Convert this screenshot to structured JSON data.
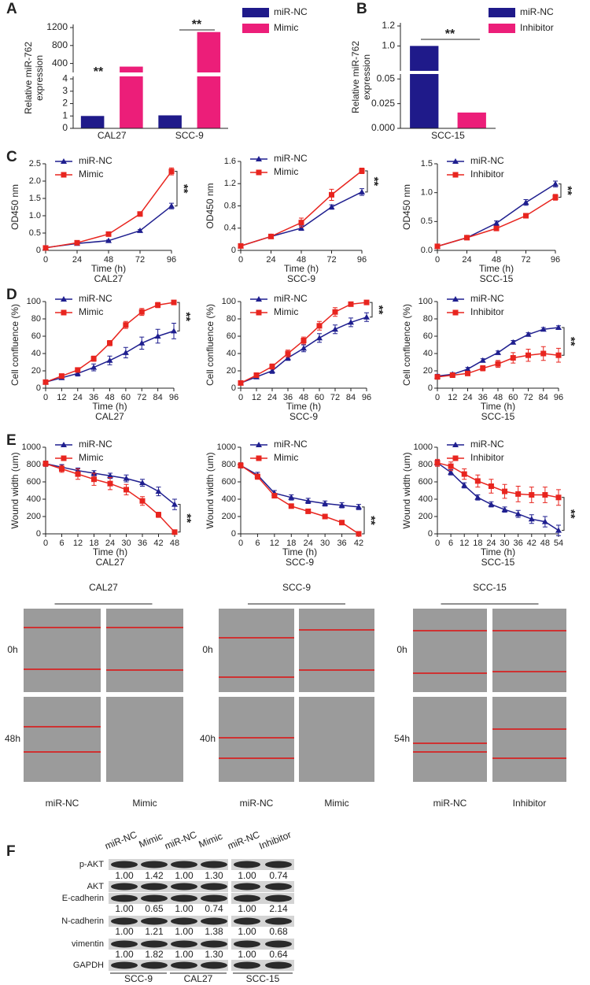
{
  "panel_labels": [
    "A",
    "B",
    "C",
    "D",
    "E",
    "F"
  ],
  "chart_data": [
    {
      "type": "bar",
      "ylabel": [
        "Relative miR-762",
        "expression"
      ],
      "categories": [
        "CAL27",
        "SCC-9"
      ],
      "series": [
        {
          "name": "miR-NC",
          "color": "#1f1a8a",
          "values": [
            1.0,
            1.05
          ]
        },
        {
          "name": "Mimic",
          "color": "#ec1e79",
          "values": [
            330,
            1100
          ]
        }
      ],
      "ylim": [
        0,
        1200
      ],
      "ybreak": [
        4.2,
        200
      ],
      "yticks": [
        0,
        1,
        2,
        3,
        4,
        400,
        800,
        1200
      ],
      "annotations": [
        "**",
        "**"
      ]
    },
    {
      "type": "bar",
      "ylabel": [
        "Relative miR-762",
        "expression"
      ],
      "categories": [
        "SCC-15"
      ],
      "series": [
        {
          "name": "miR-NC",
          "color": "#1f1a8a",
          "values": [
            1.0
          ]
        },
        {
          "name": "Inhibitor",
          "color": "#ec1e79",
          "values": [
            0.016
          ]
        }
      ],
      "ylim": [
        0,
        1.2
      ],
      "ybreak": [
        0.055,
        0.75
      ],
      "yticks": [
        {
          "value": 0,
          "label": "0.000"
        },
        {
          "value": 0.025,
          "label": "0.025"
        },
        0.05,
        {
          "value": 1,
          "label": "1.0"
        },
        {
          "value": 1.2,
          "label": "1.2"
        }
      ],
      "annotations": [
        "**"
      ]
    },
    {
      "type": "line",
      "subtitle": "CAL27",
      "xlabel": "Time (h)",
      "ylabel": "OD450 nm",
      "x": [
        0,
        24,
        48,
        72,
        96
      ],
      "xlim": [
        0,
        96
      ],
      "xticks": [
        0,
        24,
        48,
        72,
        96
      ],
      "ylim": [
        0,
        2.5
      ],
      "yticks": [
        0,
        0.5,
        {
          "value": 1,
          "label": "1.0"
        },
        1.5,
        {
          "value": 2,
          "label": "2.0"
        },
        2.5
      ],
      "series": [
        {
          "name": "miR-NC",
          "color": "#1f1f8f",
          "marker": "triangle",
          "values": [
            0.08,
            0.2,
            0.28,
            0.57,
            1.28
          ],
          "errors": [
            0.01,
            0.02,
            0.02,
            0.03,
            0.08
          ]
        },
        {
          "name": "Mimic",
          "color": "#e8251f",
          "marker": "square",
          "values": [
            0.07,
            0.22,
            0.47,
            1.05,
            2.28
          ],
          "errors": [
            0.01,
            0.02,
            0.03,
            0.04,
            0.1
          ]
        }
      ],
      "annotation": "**"
    },
    {
      "type": "line",
      "subtitle": "SCC-9",
      "xlabel": "Time (h)",
      "ylabel": "OD450 nm",
      "x": [
        0,
        24,
        48,
        72,
        96
      ],
      "xlim": [
        0,
        96
      ],
      "xticks": [
        0,
        24,
        48,
        72,
        96
      ],
      "ylim": [
        0,
        1.6
      ],
      "yticks": [
        0,
        0.4,
        0.8,
        1.2,
        1.6
      ],
      "series": [
        {
          "name": "miR-NC",
          "color": "#1f1f8f",
          "marker": "triangle",
          "values": [
            0.08,
            0.25,
            0.4,
            0.78,
            1.05
          ],
          "errors": [
            0.01,
            0.02,
            0.04,
            0.04,
            0.06
          ]
        },
        {
          "name": "Mimic",
          "color": "#e8251f",
          "marker": "square",
          "values": [
            0.08,
            0.25,
            0.5,
            1.0,
            1.43
          ],
          "errors": [
            0.01,
            0.02,
            0.08,
            0.1,
            0.05
          ]
        }
      ],
      "annotation": "**"
    },
    {
      "type": "line",
      "subtitle": "SCC-15",
      "xlabel": "Time (h)",
      "ylabel": "OD450 nm",
      "x": [
        0,
        24,
        48,
        72,
        96
      ],
      "xlim": [
        0,
        96
      ],
      "xticks": [
        0,
        24,
        48,
        72,
        96
      ],
      "ylim": [
        0,
        1.5
      ],
      "yticks": [
        {
          "value": 0,
          "label": "0.0"
        },
        0.5,
        {
          "value": 1,
          "label": "1.0"
        },
        1.5
      ],
      "series": [
        {
          "name": "miR-NC",
          "color": "#1f1f8f",
          "marker": "triangle",
          "values": [
            0.07,
            0.22,
            0.47,
            0.83,
            1.15
          ],
          "errors": [
            0.01,
            0.02,
            0.04,
            0.05,
            0.05
          ]
        },
        {
          "name": "Inhibitor",
          "color": "#e8251f",
          "marker": "square",
          "values": [
            0.07,
            0.22,
            0.38,
            0.6,
            0.92
          ],
          "errors": [
            0.01,
            0.02,
            0.03,
            0.04,
            0.05
          ]
        }
      ],
      "annotation": "**"
    },
    {
      "type": "line",
      "subtitle": "CAL27",
      "xlabel": "Time (h)",
      "ylabel": "Cell confluence (%)",
      "x": [
        0,
        12,
        24,
        36,
        48,
        60,
        72,
        84,
        96
      ],
      "xlim": [
        0,
        96
      ],
      "xticks": [
        0,
        12,
        24,
        36,
        48,
        60,
        72,
        84,
        96
      ],
      "ylim": [
        0,
        100
      ],
      "yticks": [
        0,
        20,
        40,
        60,
        80,
        100
      ],
      "series": [
        {
          "name": "miR-NC",
          "color": "#1f1f8f",
          "marker": "triangle",
          "values": [
            7,
            12,
            17,
            24,
            32,
            41,
            52,
            60,
            66
          ],
          "errors": [
            2,
            2,
            3,
            4,
            5,
            6,
            7,
            8,
            9
          ]
        },
        {
          "name": "Mimic",
          "color": "#e8251f",
          "marker": "square",
          "values": [
            7,
            14,
            21,
            34,
            52,
            73,
            88,
            96,
            99
          ],
          "errors": [
            2,
            2,
            2,
            3,
            3,
            4,
            4,
            3,
            1
          ]
        }
      ],
      "annotation": "**"
    },
    {
      "type": "line",
      "subtitle": "SCC-9",
      "xlabel": "Time (h)",
      "ylabel": "Cell confluence (%)",
      "x": [
        0,
        12,
        24,
        36,
        48,
        60,
        72,
        84,
        96
      ],
      "xlim": [
        0,
        96
      ],
      "xticks": [
        0,
        12,
        24,
        36,
        48,
        60,
        72,
        84,
        96
      ],
      "ylim": [
        0,
        100
      ],
      "yticks": [
        0,
        20,
        40,
        60,
        80,
        100
      ],
      "series": [
        {
          "name": "miR-NC",
          "color": "#1f1f8f",
          "marker": "triangle",
          "values": [
            6,
            13,
            20,
            35,
            46,
            58,
            68,
            76,
            82
          ],
          "errors": [
            2,
            2,
            3,
            3,
            4,
            5,
            5,
            5,
            5
          ]
        },
        {
          "name": "Mimic",
          "color": "#e8251f",
          "marker": "square",
          "values": [
            6,
            15,
            25,
            40,
            55,
            72,
            88,
            97,
            99
          ],
          "errors": [
            2,
            2,
            3,
            4,
            4,
            5,
            5,
            2,
            1
          ]
        }
      ],
      "annotation": "**"
    },
    {
      "type": "line",
      "subtitle": "SCC-15",
      "xlabel": "Time (h)",
      "ylabel": "Cell confluence (%)",
      "x": [
        0,
        12,
        24,
        36,
        48,
        60,
        72,
        84,
        96
      ],
      "xlim": [
        0,
        96
      ],
      "xticks": [
        0,
        12,
        24,
        36,
        48,
        60,
        72,
        84,
        96
      ],
      "ylim": [
        0,
        100
      ],
      "yticks": [
        0,
        20,
        40,
        60,
        80,
        100
      ],
      "series": [
        {
          "name": "miR-NC",
          "color": "#1f1f8f",
          "marker": "triangle",
          "values": [
            14,
            16,
            22,
            32,
            41,
            53,
            62,
            68,
            70
          ],
          "errors": [
            2,
            2,
            2,
            2,
            2,
            2,
            2,
            2,
            2
          ]
        },
        {
          "name": "Inhibitor",
          "color": "#e8251f",
          "marker": "square",
          "values": [
            13,
            15,
            17,
            23,
            28,
            35,
            38,
            40,
            38
          ],
          "errors": [
            2,
            2,
            2,
            3,
            4,
            6,
            7,
            8,
            8
          ]
        }
      ],
      "annotation": "**"
    },
    {
      "type": "line",
      "subtitle": "CAL27",
      "xlabel": "Time (h)",
      "ylabel": "Wound width (um)",
      "x": [
        0,
        6,
        12,
        18,
        24,
        30,
        36,
        42,
        48
      ],
      "xlim": [
        0,
        48
      ],
      "xticks": [
        0,
        6,
        12,
        18,
        24,
        30,
        36,
        42,
        48
      ],
      "ylim": [
        0,
        1000
      ],
      "yticks": [
        0,
        200,
        400,
        600,
        800,
        1000
      ],
      "series": [
        {
          "name": "miR-NC",
          "color": "#1f1f8f",
          "marker": "triangle",
          "values": [
            810,
            770,
            730,
            700,
            670,
            640,
            590,
            490,
            340
          ],
          "errors": [
            30,
            30,
            30,
            30,
            30,
            40,
            40,
            50,
            60
          ]
        },
        {
          "name": "Mimic",
          "color": "#e8251f",
          "marker": "square",
          "values": [
            810,
            750,
            690,
            630,
            580,
            510,
            380,
            220,
            20
          ],
          "errors": [
            30,
            40,
            60,
            70,
            70,
            60,
            50,
            30,
            20
          ]
        }
      ],
      "annotation": "**"
    },
    {
      "type": "line",
      "subtitle": "SCC-9",
      "xlabel": "Time (h)",
      "ylabel": "Wound width (um)",
      "x": [
        0,
        6,
        12,
        18,
        24,
        30,
        36,
        42
      ],
      "xlim": [
        0,
        42
      ],
      "xticks": [
        0,
        6,
        12,
        18,
        24,
        30,
        36,
        42
      ],
      "ylim": [
        0,
        1000
      ],
      "yticks": [
        0,
        200,
        400,
        600,
        800,
        1000
      ],
      "series": [
        {
          "name": "miR-NC",
          "color": "#1f1f8f",
          "marker": "triangle",
          "values": [
            790,
            680,
            470,
            420,
            380,
            350,
            330,
            310
          ],
          "errors": [
            30,
            30,
            30,
            30,
            30,
            30,
            30,
            30
          ]
        },
        {
          "name": "Mimic",
          "color": "#e8251f",
          "marker": "square",
          "values": [
            790,
            660,
            440,
            320,
            260,
            200,
            130,
            0
          ],
          "errors": [
            30,
            30,
            20,
            20,
            20,
            20,
            20,
            10
          ]
        }
      ],
      "annotation": "**"
    },
    {
      "type": "line",
      "subtitle": "SCC-15",
      "xlabel": "Time (h)",
      "ylabel": "Wound width (um)",
      "x": [
        0,
        6,
        12,
        18,
        24,
        30,
        36,
        42,
        48,
        54
      ],
      "xlim": [
        0,
        54
      ],
      "xticks": [
        0,
        6,
        12,
        18,
        24,
        30,
        36,
        42,
        48,
        54
      ],
      "ylim": [
        0,
        1000
      ],
      "yticks": [
        0,
        200,
        400,
        600,
        800,
        1000
      ],
      "series": [
        {
          "name": "miR-NC",
          "color": "#1f1f8f",
          "marker": "triangle",
          "values": [
            820,
            710,
            560,
            420,
            340,
            280,
            230,
            170,
            140,
            40
          ],
          "errors": [
            30,
            30,
            30,
            30,
            30,
            30,
            40,
            50,
            60,
            60
          ]
        },
        {
          "name": "Inhibitor",
          "color": "#e8251f",
          "marker": "square",
          "values": [
            820,
            780,
            690,
            610,
            550,
            490,
            460,
            450,
            450,
            420
          ],
          "errors": [
            40,
            50,
            60,
            70,
            80,
            80,
            90,
            90,
            90,
            90
          ]
        }
      ],
      "annotation": "**"
    }
  ],
  "wound_assay": {
    "groups": [
      {
        "cell_line": "CAL27",
        "times": [
          "0h",
          "48h"
        ],
        "columns": [
          "miR-NC",
          "Mimic"
        ]
      },
      {
        "cell_line": "SCC-9",
        "times": [
          "0h",
          "40h"
        ],
        "columns": [
          "miR-NC",
          "Mimic"
        ]
      },
      {
        "cell_line": "SCC-15",
        "times": [
          "0h",
          "54h"
        ],
        "columns": [
          "miR-NC",
          "Inhibitor"
        ]
      }
    ]
  },
  "western_blot": {
    "lanes": [
      "miR-NC",
      "Mimic",
      "miR-NC",
      "Mimic",
      "miR-NC",
      "Inhibitor"
    ],
    "rows": [
      {
        "label": "p-AKT",
        "ratios": [
          "1.00",
          "1.42",
          "1.00",
          "1.30",
          "1.00",
          "0.74"
        ]
      },
      {
        "label": "AKT"
      },
      {
        "label": "E-cadherin",
        "ratios": [
          "1.00",
          "0.65",
          "1.00",
          "0.74",
          "1.00",
          "2.14"
        ]
      },
      {
        "label": "N-cadherin",
        "ratios": [
          "1.00",
          "1.21",
          "1.00",
          "1.38",
          "1.00",
          "0.68"
        ]
      },
      {
        "label": "vimentin",
        "ratios": [
          "1.00",
          "1.82",
          "1.00",
          "1.30",
          "1.00",
          "0.64"
        ]
      },
      {
        "label": "GAPDH"
      }
    ],
    "groups": [
      "SCC-9",
      "CAL27",
      "SCC-15"
    ]
  }
}
